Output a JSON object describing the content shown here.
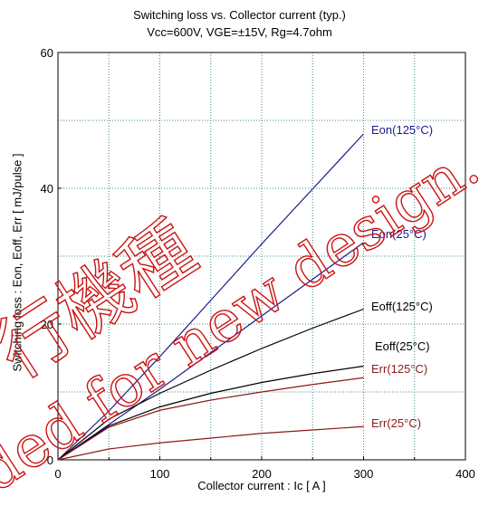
{
  "chart_data": {
    "type": "line",
    "title": "Switching loss  vs.  Collector current  (typ.)",
    "subtitle": "Vcc=600V, VGE=±15V, Rg=4.7ohm",
    "xlabel": "Collector current  :  Ic  [ A ]",
    "ylabel": "Switching loss  :  Eon, Eoff, Err  [ mJ/pulse ]",
    "xlim": [
      0,
      400
    ],
    "ylim": [
      0,
      60
    ],
    "xticks": [
      0,
      100,
      200,
      300,
      400
    ],
    "yticks": [
      0,
      20,
      40,
      60
    ],
    "grid": true,
    "x": [
      0,
      50,
      100,
      150,
      200,
      250,
      300
    ],
    "series": [
      {
        "name": "Eon(125°C)",
        "color": "#1a1a8c",
        "values": [
          0,
          7.2,
          15.2,
          23.5,
          31.8,
          39.9,
          48.0
        ]
      },
      {
        "name": "Eon(25°C)",
        "color": "#1a1a8c",
        "values": [
          0,
          5.2,
          10.4,
          15.8,
          21.2,
          26.6,
          32.0
        ]
      },
      {
        "name": "Eoff(125°C)",
        "color": "#000000",
        "values": [
          0,
          6.0,
          9.8,
          13.2,
          16.4,
          19.4,
          22.2
        ]
      },
      {
        "name": "Eoff(25°C)",
        "color": "#000000",
        "values": [
          0,
          5.0,
          7.8,
          9.8,
          11.4,
          12.7,
          13.8
        ]
      },
      {
        "name": "Err(125°C)",
        "color": "#8c1a1a",
        "values": [
          0,
          4.8,
          7.3,
          8.8,
          10.0,
          11.1,
          12.1
        ]
      },
      {
        "name": "Err(25°C)",
        "color": "#8c1a1a",
        "values": [
          0,
          1.6,
          2.5,
          3.2,
          3.9,
          4.4,
          4.9
        ]
      }
    ],
    "series_labels_color": {
      "Eon": "#1a1a8c",
      "Eoff": "#000000",
      "Err": "#8c1a1a"
    }
  },
  "watermark": {
    "line1": "行機種",
    "line2": "ded for new design.",
    "color": "#cc1111"
  }
}
